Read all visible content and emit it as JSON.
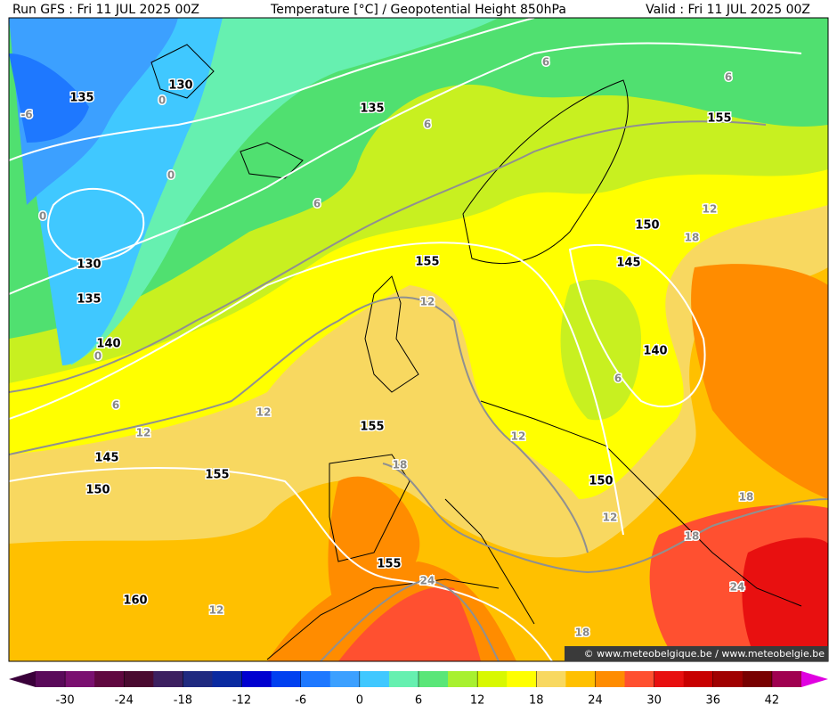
{
  "header": {
    "run": "Run GFS : Fri 11 JUL 2025 00Z",
    "title": "Temperature [°C] / Geopotential Height 850hPa",
    "valid": "Valid : Fri 11 JUL 2025 00Z"
  },
  "map": {
    "height_labels": [
      "135",
      "130",
      "135",
      "130",
      "135",
      "140",
      "155",
      "155",
      "150",
      "145",
      "140",
      "155",
      "145",
      "150",
      "155",
      "150",
      "155",
      "160"
    ],
    "temperature_labels": [
      "-6",
      "0",
      "0",
      "0",
      "0",
      "6",
      "6",
      "6",
      "6",
      "6",
      "6",
      "12",
      "12",
      "12",
      "12",
      "12",
      "12",
      "12",
      "18",
      "18",
      "18",
      "18",
      "18",
      "24",
      "24"
    ],
    "credit": "© www.meteobelgique.be / www.meteobelgie.be"
  },
  "colorbar": {
    "lim": [
      -33,
      45
    ],
    "colors": [
      "#5a0a5a",
      "#7a1070",
      "#600840",
      "#4a0a30",
      "#3c2060",
      "#202a80",
      "#0a2aa0",
      "#0000d0",
      "#0040f0",
      "#1e78ff",
      "#3ca0ff",
      "#40c8ff",
      "#66f0b0",
      "#5ae678",
      "#a8f030",
      "#d8f800",
      "#ffff00",
      "#f8d860",
      "#ffc000",
      "#ff8c00",
      "#ff5030",
      "#e81010",
      "#c80000",
      "#a00000",
      "#780000",
      "#a00050"
    ],
    "end_colors": [
      "#3a003a",
      "#e000e0"
    ],
    "ticks": [
      -30,
      -24,
      -18,
      -12,
      -6,
      0,
      6,
      12,
      18,
      24,
      30,
      36,
      42
    ]
  }
}
